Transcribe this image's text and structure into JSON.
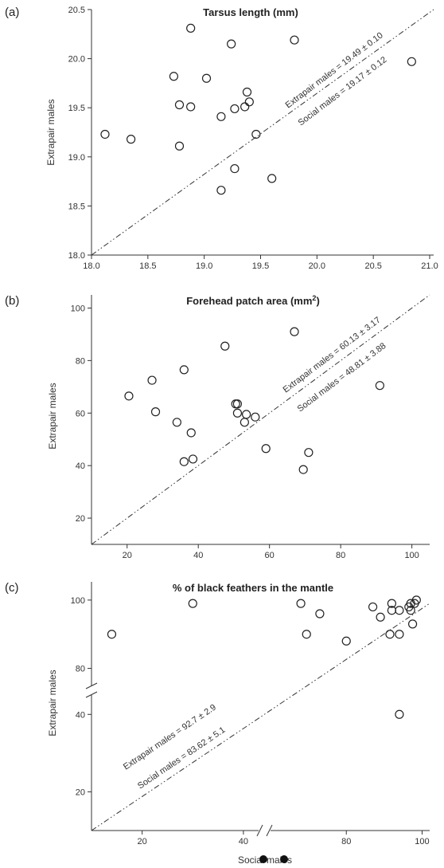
{
  "chart_data": [
    {
      "type": "scatter",
      "panel": "(a)",
      "title": "Tarsus length (mm)",
      "xlabel": "",
      "ylabel": "Extrapair males",
      "xlim": [
        18.0,
        21.0
      ],
      "ylim": [
        18.0,
        20.5
      ],
      "xticks": [
        "18.0",
        "18.5",
        "19.0",
        "19.5",
        "20.0",
        "20.5",
        "21.0"
      ],
      "yticks": [
        "18.0",
        "18.5",
        "19.0",
        "19.5",
        "20.0",
        "20.5"
      ],
      "annotation_extrapair": "Extrapair males = 19.49 ± 0.10",
      "annotation_social": "Social males = 19.17 ± 0.12",
      "reference_line": "y = x",
      "points": [
        {
          "x": 18.12,
          "y": 19.23
        },
        {
          "x": 18.35,
          "y": 19.18
        },
        {
          "x": 18.73,
          "y": 19.82
        },
        {
          "x": 18.78,
          "y": 19.53
        },
        {
          "x": 18.78,
          "y": 19.11
        },
        {
          "x": 18.88,
          "y": 20.31
        },
        {
          "x": 18.88,
          "y": 19.51
        },
        {
          "x": 19.02,
          "y": 19.8
        },
        {
          "x": 19.15,
          "y": 19.41
        },
        {
          "x": 19.15,
          "y": 18.66
        },
        {
          "x": 19.24,
          "y": 20.15
        },
        {
          "x": 19.27,
          "y": 19.49
        },
        {
          "x": 19.27,
          "y": 18.88
        },
        {
          "x": 19.36,
          "y": 19.51
        },
        {
          "x": 19.38,
          "y": 19.66
        },
        {
          "x": 19.4,
          "y": 19.56
        },
        {
          "x": 19.46,
          "y": 19.23
        },
        {
          "x": 19.6,
          "y": 18.78
        },
        {
          "x": 19.8,
          "y": 20.19
        },
        {
          "x": 20.84,
          "y": 19.97
        }
      ]
    },
    {
      "type": "scatter",
      "panel": "(b)",
      "title": "Forehead patch area (mm",
      "title_sup": "2",
      "title_end": ")",
      "xlabel": "",
      "ylabel": "Extrapair males",
      "xlim": [
        10,
        105
      ],
      "ylim": [
        10,
        105
      ],
      "xticks": [
        "20",
        "40",
        "60",
        "80",
        "100"
      ],
      "yticks": [
        "20",
        "40",
        "60",
        "80",
        "100"
      ],
      "annotation_extrapair": "Extrapair males = 60.13 ± 3.17",
      "annotation_social": "Social males = 48.81 ± 3.88",
      "reference_line": "y = x",
      "points": [
        {
          "x": 20.5,
          "y": 66.5
        },
        {
          "x": 27,
          "y": 72.5
        },
        {
          "x": 28,
          "y": 60.5
        },
        {
          "x": 34,
          "y": 56.5
        },
        {
          "x": 36,
          "y": 76.5
        },
        {
          "x": 36,
          "y": 41.5
        },
        {
          "x": 38,
          "y": 52.5
        },
        {
          "x": 38.5,
          "y": 42.5
        },
        {
          "x": 47.5,
          "y": 85.5
        },
        {
          "x": 50.5,
          "y": 63.5
        },
        {
          "x": 51,
          "y": 63.5
        },
        {
          "x": 51,
          "y": 60
        },
        {
          "x": 53,
          "y": 56.5
        },
        {
          "x": 53.5,
          "y": 59.5
        },
        {
          "x": 56,
          "y": 58.5
        },
        {
          "x": 59,
          "y": 46.5
        },
        {
          "x": 67,
          "y": 91
        },
        {
          "x": 69.5,
          "y": 38.5
        },
        {
          "x": 71,
          "y": 45
        },
        {
          "x": 91,
          "y": 70.5
        }
      ]
    },
    {
      "type": "scatter",
      "panel": "(c)",
      "title": "% of black feathers in the mantle",
      "xlabel": "Social males",
      "ylabel": "Extrapair males",
      "axis_breaks": "both axes broken",
      "xticks": [
        "20",
        "40",
        "80",
        "100"
      ],
      "yticks": [
        "20",
        "40",
        "80",
        "100"
      ],
      "annotation_extrapair": "Extrapair males = 92.7 ± 2.9",
      "annotation_social": "Social males = 83.62 ± 5.1",
      "reference_line": "y = x",
      "points": [
        {
          "x": 14,
          "y": 90
        },
        {
          "x": 30,
          "y": 99
        },
        {
          "x": 68,
          "y": 99
        },
        {
          "x": 69.5,
          "y": 90
        },
        {
          "x": 73,
          "y": 96
        },
        {
          "x": 80,
          "y": 88
        },
        {
          "x": 87,
          "y": 98
        },
        {
          "x": 89,
          "y": 95
        },
        {
          "x": 91.5,
          "y": 90
        },
        {
          "x": 92,
          "y": 99
        },
        {
          "x": 92,
          "y": 97
        },
        {
          "x": 94,
          "y": 97
        },
        {
          "x": 94,
          "y": 90
        },
        {
          "x": 94,
          "y": 40
        },
        {
          "x": 96.5,
          "y": 98
        },
        {
          "x": 97,
          "y": 99
        },
        {
          "x": 97,
          "y": 97
        },
        {
          "x": 97.5,
          "y": 93
        },
        {
          "x": 98,
          "y": 99
        },
        {
          "x": 98.5,
          "y": 100
        }
      ]
    }
  ]
}
